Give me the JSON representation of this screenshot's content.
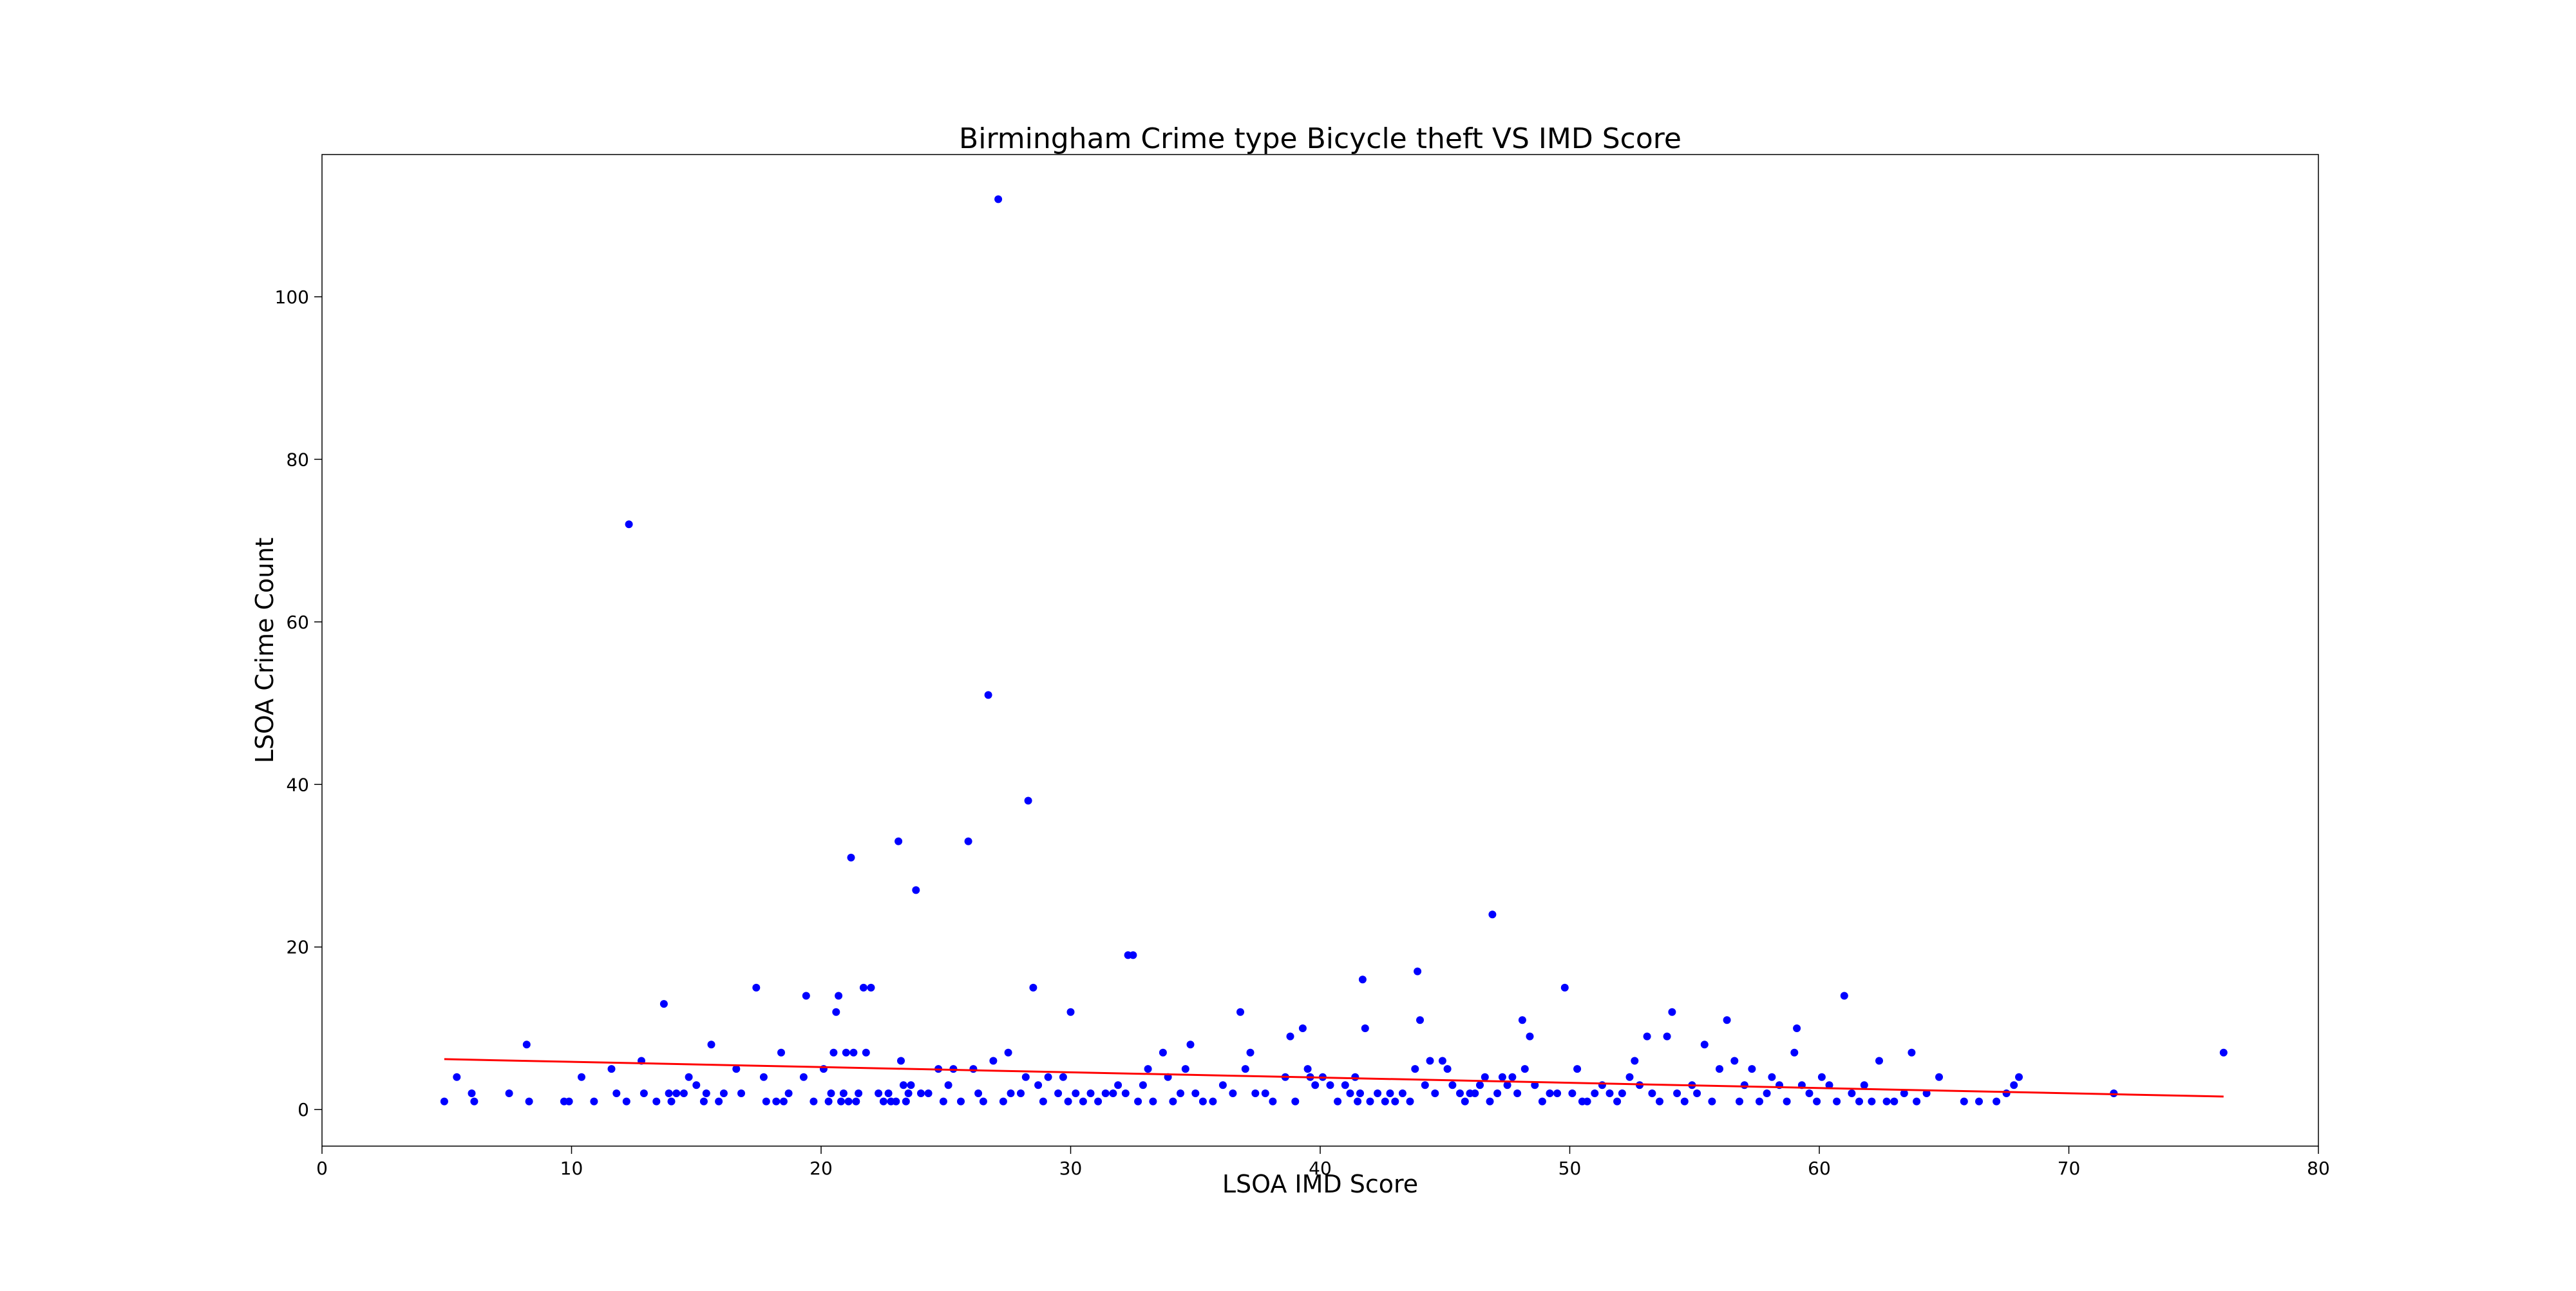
{
  "chart_data": {
    "type": "scatter",
    "title": "Birmingham Crime type Bicycle theft VS IMD Score",
    "xlabel": "LSOA IMD Score",
    "ylabel": "LSOA Crime Count",
    "xlim": [
      0,
      80
    ],
    "ylim": [
      -4.5,
      117.5
    ],
    "x_ticks": [
      0,
      10,
      20,
      30,
      40,
      50,
      60,
      70,
      80
    ],
    "y_ticks": [
      0,
      20,
      40,
      60,
      80,
      100
    ],
    "grid": false,
    "legend": "none",
    "colors": {
      "points": "#0000ff",
      "trend": "#ff0000",
      "frame": "#000000"
    },
    "series": [
      {
        "type": "scatter",
        "points": [
          [
            4.9,
            1
          ],
          [
            5.4,
            4
          ],
          [
            6.0,
            2
          ],
          [
            6.1,
            1
          ],
          [
            7.5,
            2
          ],
          [
            8.2,
            8
          ],
          [
            8.3,
            1
          ],
          [
            9.7,
            1
          ],
          [
            9.9,
            1
          ],
          [
            10.4,
            4
          ],
          [
            10.9,
            1
          ],
          [
            11.6,
            5
          ],
          [
            11.8,
            2
          ],
          [
            12.2,
            1
          ],
          [
            12.3,
            72
          ],
          [
            12.8,
            6
          ],
          [
            12.9,
            2
          ],
          [
            13.4,
            1
          ],
          [
            13.7,
            13
          ],
          [
            13.9,
            2
          ],
          [
            14.0,
            1
          ],
          [
            14.2,
            2
          ],
          [
            14.5,
            2
          ],
          [
            14.7,
            4
          ],
          [
            15.0,
            3
          ],
          [
            15.3,
            1
          ],
          [
            15.4,
            2
          ],
          [
            15.6,
            8
          ],
          [
            15.9,
            1
          ],
          [
            16.1,
            2
          ],
          [
            16.6,
            5
          ],
          [
            16.8,
            2
          ],
          [
            17.4,
            15
          ],
          [
            17.7,
            4
          ],
          [
            17.8,
            1
          ],
          [
            18.2,
            1
          ],
          [
            18.4,
            7
          ],
          [
            18.5,
            1
          ],
          [
            18.7,
            2
          ],
          [
            19.3,
            4
          ],
          [
            19.4,
            14
          ],
          [
            19.7,
            1
          ],
          [
            20.1,
            5
          ],
          [
            20.3,
            1
          ],
          [
            20.4,
            2
          ],
          [
            20.5,
            7
          ],
          [
            20.6,
            12
          ],
          [
            20.7,
            14
          ],
          [
            20.8,
            1
          ],
          [
            20.9,
            2
          ],
          [
            21.0,
            7
          ],
          [
            21.1,
            1
          ],
          [
            21.2,
            31
          ],
          [
            21.3,
            7
          ],
          [
            21.4,
            1
          ],
          [
            21.5,
            2
          ],
          [
            21.7,
            15
          ],
          [
            21.8,
            7
          ],
          [
            22.0,
            15
          ],
          [
            22.3,
            2
          ],
          [
            22.5,
            1
          ],
          [
            22.7,
            2
          ],
          [
            22.8,
            1
          ],
          [
            23.0,
            1
          ],
          [
            23.1,
            33
          ],
          [
            23.2,
            6
          ],
          [
            23.3,
            3
          ],
          [
            23.4,
            1
          ],
          [
            23.5,
            2
          ],
          [
            23.6,
            3
          ],
          [
            23.8,
            27
          ],
          [
            24.0,
            2
          ],
          [
            24.3,
            2
          ],
          [
            24.7,
            5
          ],
          [
            24.9,
            1
          ],
          [
            25.1,
            3
          ],
          [
            25.3,
            5
          ],
          [
            25.6,
            1
          ],
          [
            25.9,
            33
          ],
          [
            26.1,
            5
          ],
          [
            26.3,
            2
          ],
          [
            26.5,
            1
          ],
          [
            26.7,
            51
          ],
          [
            26.9,
            6
          ],
          [
            27.1,
            112
          ],
          [
            27.3,
            1
          ],
          [
            27.5,
            7
          ],
          [
            27.6,
            2
          ],
          [
            28.0,
            2
          ],
          [
            28.2,
            4
          ],
          [
            28.3,
            38
          ],
          [
            28.5,
            15
          ],
          [
            28.7,
            3
          ],
          [
            28.9,
            1
          ],
          [
            29.1,
            4
          ],
          [
            29.5,
            2
          ],
          [
            29.7,
            4
          ],
          [
            29.9,
            1
          ],
          [
            30.0,
            12
          ],
          [
            30.2,
            2
          ],
          [
            30.5,
            1
          ],
          [
            30.8,
            2
          ],
          [
            31.1,
            1
          ],
          [
            31.4,
            2
          ],
          [
            31.7,
            2
          ],
          [
            31.9,
            3
          ],
          [
            32.2,
            2
          ],
          [
            32.3,
            19
          ],
          [
            32.5,
            19
          ],
          [
            32.7,
            1
          ],
          [
            32.9,
            3
          ],
          [
            33.1,
            5
          ],
          [
            33.3,
            1
          ],
          [
            33.7,
            7
          ],
          [
            33.9,
            4
          ],
          [
            34.1,
            1
          ],
          [
            34.4,
            2
          ],
          [
            34.6,
            5
          ],
          [
            34.8,
            8
          ],
          [
            35.0,
            2
          ],
          [
            35.3,
            1
          ],
          [
            35.7,
            1
          ],
          [
            36.1,
            3
          ],
          [
            36.5,
            2
          ],
          [
            36.8,
            12
          ],
          [
            37.0,
            5
          ],
          [
            37.2,
            7
          ],
          [
            37.4,
            2
          ],
          [
            37.8,
            2
          ],
          [
            38.1,
            1
          ],
          [
            38.6,
            4
          ],
          [
            38.8,
            9
          ],
          [
            39.0,
            1
          ],
          [
            39.3,
            10
          ],
          [
            39.5,
            5
          ],
          [
            39.6,
            4
          ],
          [
            39.8,
            3
          ],
          [
            40.1,
            4
          ],
          [
            40.4,
            3
          ],
          [
            40.7,
            1
          ],
          [
            41.0,
            3
          ],
          [
            41.2,
            2
          ],
          [
            41.4,
            4
          ],
          [
            41.5,
            1
          ],
          [
            41.6,
            2
          ],
          [
            41.7,
            16
          ],
          [
            41.8,
            10
          ],
          [
            42.0,
            1
          ],
          [
            42.3,
            2
          ],
          [
            42.6,
            1
          ],
          [
            42.8,
            2
          ],
          [
            43.0,
            1
          ],
          [
            43.3,
            2
          ],
          [
            43.6,
            1
          ],
          [
            43.8,
            5
          ],
          [
            43.9,
            17
          ],
          [
            44.0,
            11
          ],
          [
            44.2,
            3
          ],
          [
            44.4,
            6
          ],
          [
            44.6,
            2
          ],
          [
            44.9,
            6
          ],
          [
            45.1,
            5
          ],
          [
            45.3,
            3
          ],
          [
            45.6,
            2
          ],
          [
            45.8,
            1
          ],
          [
            46.0,
            2
          ],
          [
            46.2,
            2
          ],
          [
            46.4,
            3
          ],
          [
            46.6,
            4
          ],
          [
            46.8,
            1
          ],
          [
            46.9,
            24
          ],
          [
            47.1,
            2
          ],
          [
            47.3,
            4
          ],
          [
            47.5,
            3
          ],
          [
            47.7,
            4
          ],
          [
            47.9,
            2
          ],
          [
            48.1,
            11
          ],
          [
            48.2,
            5
          ],
          [
            48.4,
            9
          ],
          [
            48.6,
            3
          ],
          [
            48.9,
            1
          ],
          [
            49.2,
            2
          ],
          [
            49.5,
            2
          ],
          [
            49.8,
            15
          ],
          [
            50.1,
            2
          ],
          [
            50.3,
            5
          ],
          [
            50.5,
            1
          ],
          [
            50.7,
            1
          ],
          [
            51.0,
            2
          ],
          [
            51.3,
            3
          ],
          [
            51.6,
            2
          ],
          [
            51.9,
            1
          ],
          [
            52.1,
            2
          ],
          [
            52.4,
            4
          ],
          [
            52.6,
            6
          ],
          [
            52.8,
            3
          ],
          [
            53.1,
            9
          ],
          [
            53.3,
            2
          ],
          [
            53.6,
            1
          ],
          [
            53.9,
            9
          ],
          [
            54.1,
            12
          ],
          [
            54.3,
            2
          ],
          [
            54.6,
            1
          ],
          [
            54.9,
            3
          ],
          [
            55.1,
            2
          ],
          [
            55.4,
            8
          ],
          [
            55.7,
            1
          ],
          [
            56.0,
            5
          ],
          [
            56.3,
            11
          ],
          [
            56.6,
            6
          ],
          [
            56.8,
            1
          ],
          [
            57.0,
            3
          ],
          [
            57.3,
            5
          ],
          [
            57.6,
            1
          ],
          [
            57.9,
            2
          ],
          [
            58.1,
            4
          ],
          [
            58.4,
            3
          ],
          [
            58.7,
            1
          ],
          [
            59.0,
            7
          ],
          [
            59.1,
            10
          ],
          [
            59.3,
            3
          ],
          [
            59.6,
            2
          ],
          [
            59.9,
            1
          ],
          [
            60.1,
            4
          ],
          [
            60.4,
            3
          ],
          [
            60.7,
            1
          ],
          [
            61.0,
            14
          ],
          [
            61.3,
            2
          ],
          [
            61.6,
            1
          ],
          [
            61.8,
            3
          ],
          [
            62.1,
            1
          ],
          [
            62.4,
            6
          ],
          [
            62.7,
            1
          ],
          [
            63.0,
            1
          ],
          [
            63.4,
            2
          ],
          [
            63.7,
            7
          ],
          [
            63.9,
            1
          ],
          [
            64.3,
            2
          ],
          [
            64.8,
            4
          ],
          [
            65.8,
            1
          ],
          [
            66.4,
            1
          ],
          [
            67.1,
            1
          ],
          [
            67.5,
            2
          ],
          [
            67.8,
            3
          ],
          [
            68.0,
            4
          ],
          [
            71.8,
            2
          ],
          [
            76.2,
            7
          ]
        ]
      },
      {
        "type": "line",
        "x": [
          4.9,
          76.2
        ],
        "y": [
          6.2,
          1.6
        ]
      }
    ]
  }
}
